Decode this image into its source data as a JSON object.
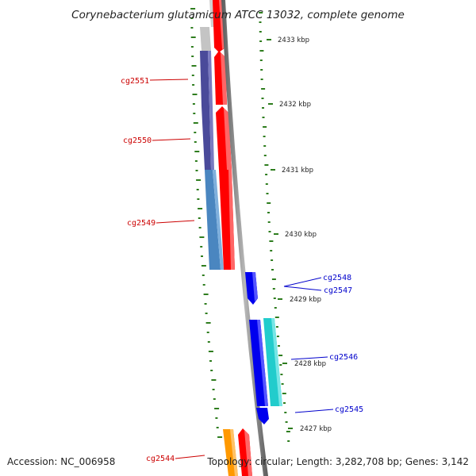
{
  "title": "Corynebacterium glutamicum ATCC 13032, complete genome",
  "footer": {
    "accession": "Accession: NC_006958",
    "topology": "Topology: circular; Length: 3,282,708 bp; Genes: 3,142"
  },
  "kbp_ticks": [
    "2433 kbp",
    "2432 kbp",
    "2431 kbp",
    "2430 kbp",
    "2429 kbp",
    "2428 kbp",
    "2427 kbp"
  ],
  "genes": [
    {
      "label": "cg2551",
      "color": "#cc0000"
    },
    {
      "label": "cg2550",
      "color": "#cc0000"
    },
    {
      "label": "cg2549",
      "color": "#cc0000"
    },
    {
      "label": "cg2548",
      "color": "#0000cc"
    },
    {
      "label": "cg2547",
      "color": "#0000cc"
    },
    {
      "label": "cg2546",
      "color": "#0000cc"
    },
    {
      "label": "cg2545",
      "color": "#0000cc"
    },
    {
      "label": "cg2544",
      "color": "#cc0000"
    }
  ],
  "colors": {
    "backbone": "#8a8a8a",
    "gc_dots": "#2e7d1e",
    "cds_forward": "#ff0000",
    "cds_reverse_blue": "#0000ee",
    "cyan": "#22cccc",
    "steel_blue": "#4a86c0",
    "indigo": "#4a4a9a",
    "orange": "#ff9900",
    "grey": "#bdbdbd"
  }
}
